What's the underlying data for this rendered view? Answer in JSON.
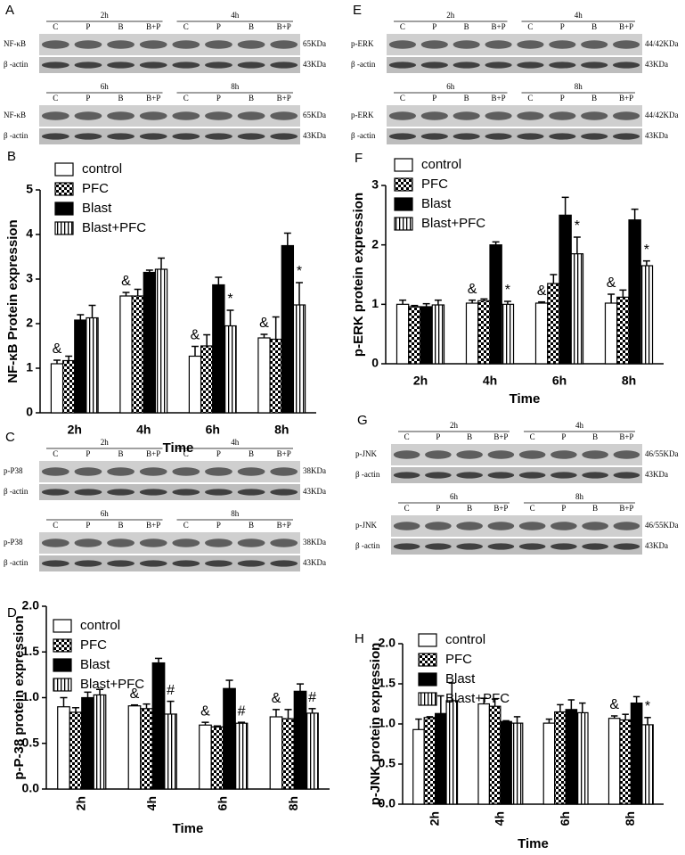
{
  "chart_data": [
    {
      "type": "bar",
      "letter": "B",
      "y_label": "NF-κB Protein expression",
      "x_label": "Time",
      "legend": "upper left",
      "categories": [
        "2h",
        "4h",
        "6h",
        "8h"
      ],
      "ylim": [
        0,
        5
      ],
      "yticks": [
        0,
        1,
        2,
        3,
        4,
        5
      ],
      "series": [
        {
          "name": "control",
          "color": "#ffffff",
          "values": [
            1.1,
            2.62,
            1.27,
            1.68
          ],
          "errors": [
            0.08,
            0.08,
            0.22,
            0.08
          ],
          "markers": [
            "&",
            "&",
            "&",
            "&"
          ]
        },
        {
          "name": "PFC",
          "color": "#ffffff",
          "pattern": "checker",
          "values": [
            1.17,
            2.62,
            1.5,
            1.65
          ],
          "errors": [
            0.1,
            0.15,
            0.25,
            0.5
          ]
        },
        {
          "name": "Blast",
          "color": "#000000",
          "values": [
            2.08,
            3.15,
            2.87,
            3.75
          ],
          "errors": [
            0.12,
            0.05,
            0.17,
            0.28
          ]
        },
        {
          "name": "Blast+PFC",
          "color": "#ffffff",
          "pattern": "vertical-lines",
          "values": [
            2.13,
            3.22,
            1.95,
            2.42
          ],
          "errors": [
            0.28,
            0.25,
            0.35,
            0.5
          ],
          "markers": [
            null,
            null,
            "*",
            "*"
          ]
        }
      ]
    },
    {
      "type": "bar",
      "letter": "F",
      "y_label": "p-ERK protein expression",
      "x_label": "Time",
      "legend": "upper left",
      "categories": [
        "2h",
        "4h",
        "6h",
        "8h"
      ],
      "ylim": [
        0,
        3
      ],
      "yticks": [
        0,
        1,
        2,
        3
      ],
      "series": [
        {
          "name": "control",
          "color": "#ffffff",
          "values": [
            1.0,
            1.02,
            1.02,
            1.02
          ],
          "errors": [
            0.07,
            0.05,
            0.02,
            0.15
          ],
          "markers": [
            null,
            "&",
            "&",
            "&"
          ]
        },
        {
          "name": "PFC",
          "color": "#ffffff",
          "pattern": "checker",
          "values": [
            0.96,
            1.06,
            1.35,
            1.12
          ],
          "errors": [
            0.02,
            0.03,
            0.15,
            0.12
          ]
        },
        {
          "name": "Blast",
          "color": "#000000",
          "values": [
            0.96,
            2.0,
            2.5,
            2.42
          ],
          "errors": [
            0.05,
            0.05,
            0.3,
            0.18
          ]
        },
        {
          "name": "Blast+PFC",
          "color": "#ffffff",
          "pattern": "vertical-lines",
          "values": [
            0.99,
            1.0,
            1.85,
            1.65
          ],
          "errors": [
            0.08,
            0.05,
            0.28,
            0.08
          ],
          "markers": [
            null,
            "*",
            "*",
            "*"
          ]
        }
      ]
    },
    {
      "type": "bar",
      "letter": "D",
      "y_label": "p-P-38 protein expression",
      "x_label": "Time",
      "legend": "upper left",
      "xtick_rotation": -90,
      "categories": [
        "2h",
        "4h",
        "6h",
        "8h"
      ],
      "ylim": [
        0,
        2
      ],
      "yticks": [
        {
          "value": 0,
          "label": "0.0"
        },
        0.5,
        {
          "value": 1,
          "label": "1.0"
        },
        1.5,
        {
          "value": 2,
          "label": "2.0"
        }
      ],
      "series": [
        {
          "name": "control",
          "color": "#ffffff",
          "values": [
            0.9,
            0.91,
            0.7,
            0.79
          ],
          "errors": [
            0.1,
            0.01,
            0.03,
            0.08
          ],
          "markers": [
            null,
            "&",
            "&",
            "&"
          ]
        },
        {
          "name": "PFC",
          "color": "#ffffff",
          "pattern": "checker",
          "values": [
            0.84,
            0.88,
            0.68,
            0.77
          ],
          "errors": [
            0.05,
            0.05,
            0.01,
            0.1
          ]
        },
        {
          "name": "Blast",
          "color": "#000000",
          "values": [
            1.0,
            1.38,
            1.1,
            1.07
          ],
          "errors": [
            0.06,
            0.05,
            0.09,
            0.08
          ]
        },
        {
          "name": "Blast+PFC",
          "color": "#ffffff",
          "pattern": "vertical-lines",
          "values": [
            1.03,
            0.82,
            0.72,
            0.83
          ],
          "errors": [
            0.06,
            0.14,
            0.01,
            0.05
          ],
          "markers": [
            null,
            "#",
            "#",
            "#"
          ]
        }
      ]
    },
    {
      "type": "bar",
      "letter": "H",
      "y_label": "p-JNK protein expression",
      "x_label": "Time",
      "legend": "upper left",
      "xtick_rotation": -90,
      "categories": [
        "2h",
        "4h",
        "6h",
        "8h"
      ],
      "ylim": [
        0,
        2
      ],
      "yticks": [
        {
          "value": 0,
          "label": "0.0"
        },
        0.5,
        {
          "value": 1,
          "label": "1.0"
        },
        1.5,
        {
          "value": 2,
          "label": "2.0"
        }
      ],
      "series": [
        {
          "name": "control",
          "color": "#ffffff",
          "values": [
            0.93,
            1.25,
            1.01,
            1.07
          ],
          "errors": [
            0.13,
            0.07,
            0.05,
            0.03
          ],
          "markers": [
            null,
            null,
            null,
            "&"
          ]
        },
        {
          "name": "PFC",
          "color": "#ffffff",
          "pattern": "checker",
          "values": [
            1.08,
            1.22,
            1.15,
            1.05
          ],
          "errors": [
            0.01,
            0.09,
            0.09,
            0.07
          ]
        },
        {
          "name": "Blast",
          "color": "#000000",
          "values": [
            1.13,
            1.03,
            1.18,
            1.26
          ],
          "errors": [
            0.22,
            0.01,
            0.12,
            0.08
          ]
        },
        {
          "name": "Blast+PFC",
          "color": "#ffffff",
          "pattern": "vertical-lines",
          "values": [
            1.29,
            1.01,
            1.14,
            0.99
          ],
          "errors": [
            0.22,
            0.08,
            0.12,
            0.09
          ],
          "markers": [
            null,
            null,
            null,
            "*"
          ]
        }
      ]
    }
  ],
  "blots": [
    {
      "letter": "A",
      "sections": [
        {
          "times": [
            "2h",
            "4h"
          ],
          "lanes": [
            "C",
            "P",
            "B",
            "B+P",
            "C",
            "P",
            "B",
            "B+P"
          ],
          "bands": [
            {
              "name": "NF-κB",
              "size": "65KDa"
            },
            {
              "name": "β -actin",
              "size": "43KDa"
            }
          ]
        },
        {
          "times": [
            "6h",
            "8h"
          ],
          "lanes": [
            "C",
            "P",
            "B",
            "B+P",
            "C",
            "P",
            "B",
            "B+P"
          ],
          "bands": [
            {
              "name": "NF-κB",
              "size": "65KDa"
            },
            {
              "name": "β -actin",
              "size": "43KDa"
            }
          ]
        }
      ]
    },
    {
      "letter": "E",
      "sections": [
        {
          "times": [
            "2h",
            "4h"
          ],
          "lanes": [
            "C",
            "P",
            "B",
            "B+P",
            "C",
            "P",
            "B",
            "B+P"
          ],
          "bands": [
            {
              "name": "p-ERK",
              "size": "44/42KDa"
            },
            {
              "name": "β -actin",
              "size": "43KDa"
            }
          ]
        },
        {
          "times": [
            "6h",
            "8h"
          ],
          "lanes": [
            "C",
            "P",
            "B",
            "B+P",
            "C",
            "P",
            "B",
            "B+P"
          ],
          "bands": [
            {
              "name": "p-ERK",
              "size": "44/42KDa"
            },
            {
              "name": "β -actin",
              "size": "43KDa"
            }
          ]
        }
      ]
    },
    {
      "letter": "C",
      "sections": [
        {
          "times": [
            "2h",
            "4h"
          ],
          "lanes": [
            "C",
            "P",
            "B",
            "B+P",
            "C",
            "P",
            "B",
            "B+P"
          ],
          "bands": [
            {
              "name": "p-P38",
              "size": "38KDa"
            },
            {
              "name": "β -actin",
              "size": "43KDa"
            }
          ]
        },
        {
          "times": [
            "6h",
            "8h"
          ],
          "lanes": [
            "C",
            "P",
            "B",
            "B+P",
            "C",
            "P",
            "B",
            "B+P"
          ],
          "bands": [
            {
              "name": "p-P38",
              "size": "38KDa"
            },
            {
              "name": "β -actin",
              "size": "43KDa"
            }
          ]
        }
      ]
    },
    {
      "letter": "G",
      "sections": [
        {
          "times": [
            "2h",
            "4h"
          ],
          "lanes": [
            "C",
            "P",
            "B",
            "B+P",
            "C",
            "P",
            "B",
            "B+P"
          ],
          "bands": [
            {
              "name": "p-JNK",
              "size": "46/55KDa"
            },
            {
              "name": "β -actin",
              "size": "43KDa"
            }
          ]
        },
        {
          "times": [
            "6h",
            "8h"
          ],
          "lanes": [
            "C",
            "P",
            "B",
            "B+P",
            "C",
            "P",
            "B",
            "B+P"
          ],
          "bands": [
            {
              "name": "p-JNK",
              "size": "46/55KDa"
            },
            {
              "name": "β -actin",
              "size": "43KDa"
            }
          ]
        }
      ]
    }
  ]
}
